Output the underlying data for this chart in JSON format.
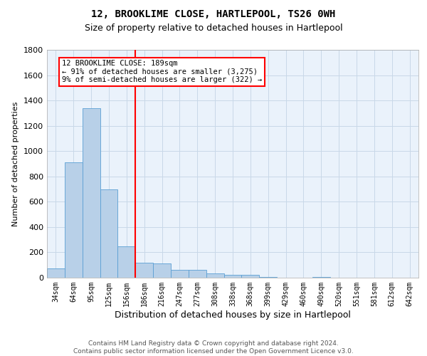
{
  "title": "12, BROOKLIME CLOSE, HARTLEPOOL, TS26 0WH",
  "subtitle": "Size of property relative to detached houses in Hartlepool",
  "xlabel": "Distribution of detached houses by size in Hartlepool",
  "ylabel": "Number of detached properties",
  "categories": [
    "34sqm",
    "64sqm",
    "95sqm",
    "125sqm",
    "156sqm",
    "186sqm",
    "216sqm",
    "247sqm",
    "277sqm",
    "308sqm",
    "338sqm",
    "368sqm",
    "399sqm",
    "429sqm",
    "460sqm",
    "490sqm",
    "520sqm",
    "551sqm",
    "581sqm",
    "612sqm",
    "642sqm"
  ],
  "values": [
    75,
    910,
    1340,
    700,
    245,
    120,
    110,
    60,
    60,
    35,
    25,
    25,
    5,
    0,
    0,
    5,
    0,
    0,
    0,
    0,
    0
  ],
  "bar_color": "#b8d0e8",
  "bar_edge_color": "#5a9fd4",
  "grid_color": "#c8d8e8",
  "background_color": "#eaf2fb",
  "vline_index": 5,
  "vline_color": "red",
  "annotation_line1": "12 BROOKLIME CLOSE: 189sqm",
  "annotation_line2": "← 91% of detached houses are smaller (3,275)",
  "annotation_line3": "9% of semi-detached houses are larger (322) →",
  "annotation_box_color": "white",
  "annotation_box_edgecolor": "red",
  "ylim": [
    0,
    1800
  ],
  "yticks": [
    0,
    200,
    400,
    600,
    800,
    1000,
    1200,
    1400,
    1600,
    1800
  ],
  "footer_text": "Contains HM Land Registry data © Crown copyright and database right 2024.\nContains public sector information licensed under the Open Government Licence v3.0.",
  "title_fontsize": 10,
  "subtitle_fontsize": 9,
  "xlabel_fontsize": 9,
  "ylabel_fontsize": 8,
  "tick_fontsize": 7,
  "footer_fontsize": 6.5,
  "annotation_fontsize": 7.5
}
